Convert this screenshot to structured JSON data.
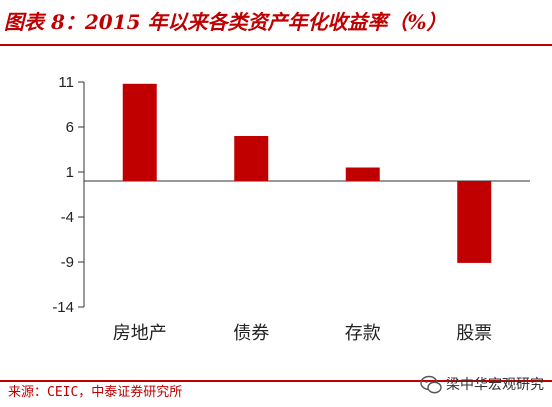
{
  "header": {
    "title": "图表 8：2015 年以来各类资产年化收益率（%）"
  },
  "footer": {
    "source": "来源：CEIC，中泰证券研究所",
    "watermark": "梁中华宏观研究"
  },
  "colors": {
    "accent": "#c00000",
    "bar": "#c00000"
  },
  "chart_data": {
    "type": "bar",
    "categories": [
      "房地产",
      "债券",
      "存款",
      "股票"
    ],
    "values": [
      10.8,
      5.0,
      1.5,
      -9.1
    ],
    "title": "",
    "xlabel": "",
    "ylabel": "",
    "ylim": [
      -14,
      11
    ],
    "yticks": [
      11,
      6,
      1,
      -4,
      -9,
      -14
    ],
    "grid": false,
    "legend": "none"
  }
}
